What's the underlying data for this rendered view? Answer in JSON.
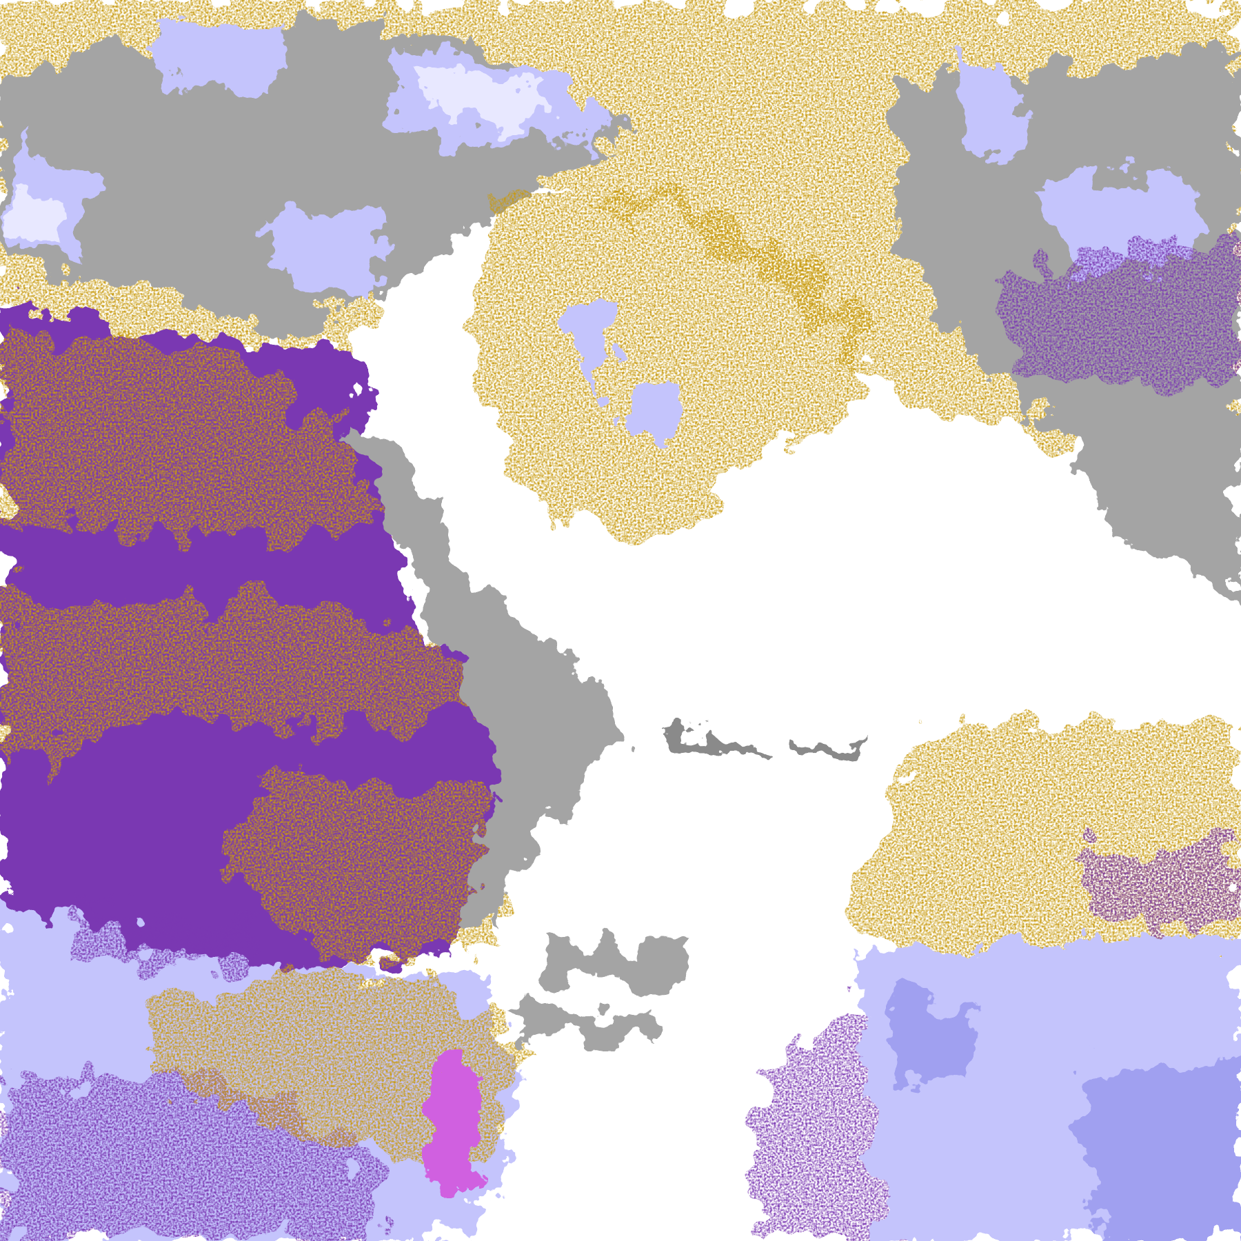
{
  "map": {
    "colors": {
      "clear": "#ffffff",
      "gold": "#c89a08",
      "purple": "#7a38b2",
      "lavender": "#c4c4fc",
      "pale_lavender": "#e8e8ff",
      "periwinkle": "#a0a0f0",
      "gray": "#a4a4a4",
      "dark_gray": "#8a8a8a",
      "magenta": "#d060e0"
    }
  }
}
